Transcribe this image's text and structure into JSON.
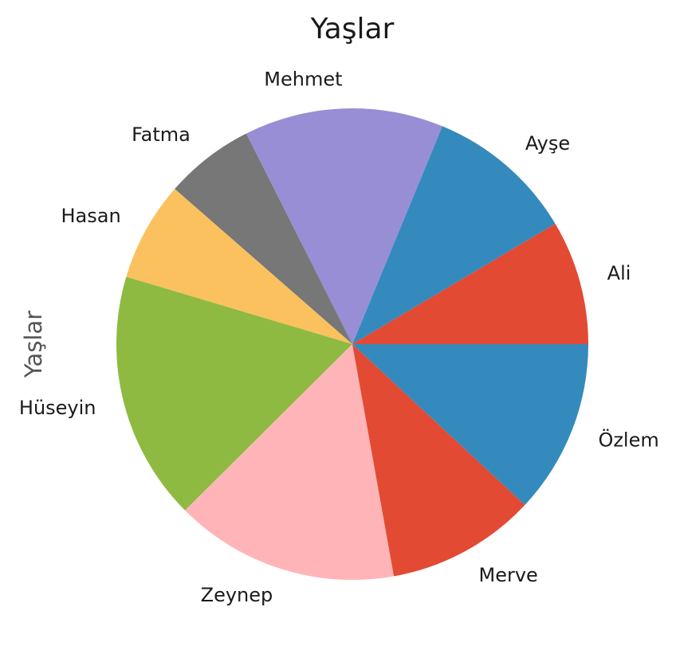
{
  "chart_data": {
    "type": "pie",
    "title": "Yaşlar",
    "ylabel": "Yaşlar",
    "start_angle_deg": 0,
    "direction": "counterclockwise",
    "slices": [
      {
        "label": "Ali",
        "value": 25,
        "color": "#E24A33"
      },
      {
        "label": "Ayşe",
        "value": 30,
        "color": "#348ABD"
      },
      {
        "label": "Mehmet",
        "value": 40,
        "color": "#988ED5"
      },
      {
        "label": "Fatma",
        "value": 18,
        "color": "#777777"
      },
      {
        "label": "Hasan",
        "value": 20,
        "color": "#FBC15E"
      },
      {
        "label": "Hüseyin",
        "value": 50,
        "color": "#8EBA42"
      },
      {
        "label": "Zeynep",
        "value": 45,
        "color": "#FFB5B8"
      },
      {
        "label": "Merve",
        "value": 30,
        "color": "#E24A33"
      },
      {
        "label": "Özlem",
        "value": 35,
        "color": "#348ABD"
      }
    ]
  }
}
